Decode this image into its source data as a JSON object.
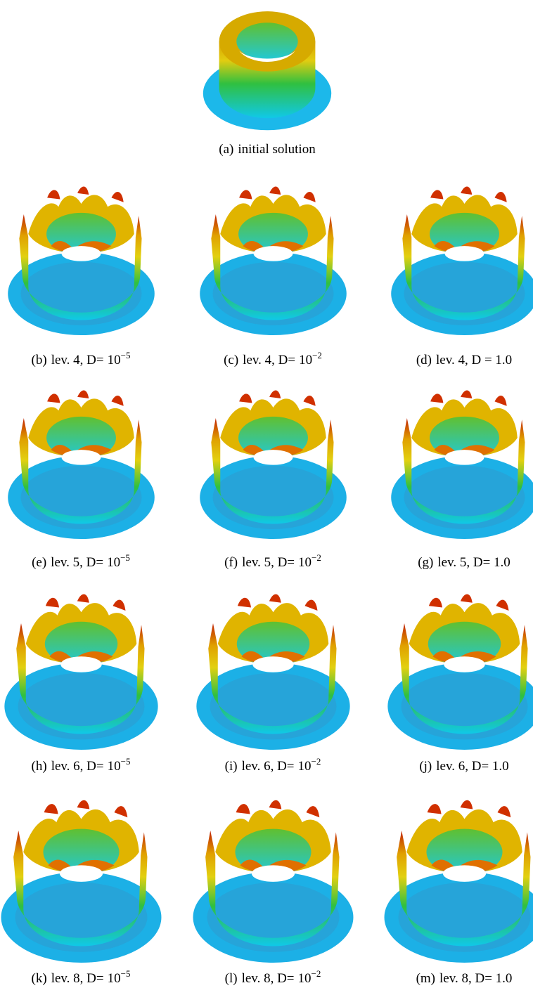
{
  "figure": {
    "subfigures": [
      {
        "label": "(a)",
        "caption": "initial solution"
      },
      {
        "label": "(b)",
        "caption": "lev. 4, D=",
        "base": "10",
        "exp": "−5"
      },
      {
        "label": "(c)",
        "caption": "lev. 4, D=",
        "base": "10",
        "exp": "−2"
      },
      {
        "label": "(d)",
        "caption": "lev. 4, D = 1.0"
      },
      {
        "label": "(e)",
        "caption": "lev. 5, D=",
        "base": "10",
        "exp": "−5"
      },
      {
        "label": "(f)",
        "caption": "lev. 5, D=",
        "base": "10",
        "exp": "−2"
      },
      {
        "label": "(g)",
        "caption": "lev. 5, D= 1.0"
      },
      {
        "label": "(h)",
        "caption": "lev. 6, D=",
        "base": "10",
        "exp": "−5"
      },
      {
        "label": "(i)",
        "caption": "lev. 6, D=",
        "base": "10",
        "exp": "−2"
      },
      {
        "label": "(j)",
        "caption": "lev. 6, D= 1.0"
      },
      {
        "label": "(k)",
        "caption": "lev. 8, D=",
        "base": "10",
        "exp": "−5"
      },
      {
        "label": "(l)",
        "caption": "lev. 8, D=",
        "base": "10",
        "exp": "−2"
      },
      {
        "label": "(m)",
        "caption": "lev. 8, D= 1.0"
      }
    ]
  }
}
